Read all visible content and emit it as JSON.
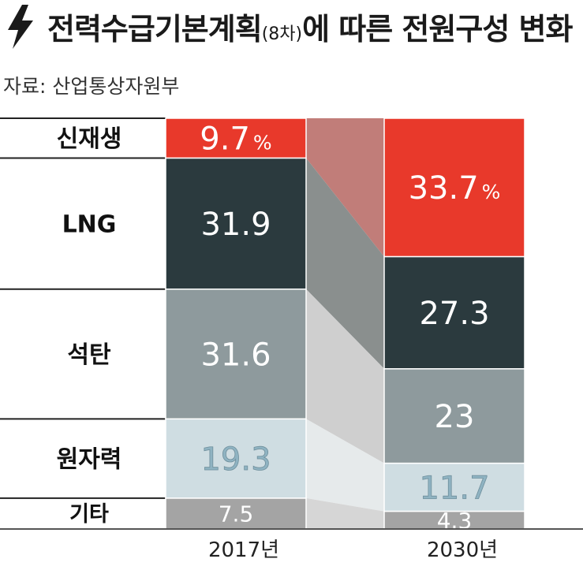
{
  "header": {
    "bolt_icon": "lightning-bolt-icon",
    "title_main": "전력수급기본계획",
    "title_paren": "(8차)",
    "title_rest": "에 따른 전원구성 변화",
    "source": "자료: 산업통상자원부"
  },
  "chart_data": {
    "type": "bar",
    "stacked": true,
    "categories": [
      "2017년",
      "2030년"
    ],
    "series": [
      {
        "name": "신재생",
        "values": [
          9.7,
          33.7
        ],
        "labels": [
          "9.7%",
          "33.7%"
        ],
        "color": "#e8392b"
      },
      {
        "name": "LNG",
        "values": [
          31.9,
          27.3
        ],
        "labels": [
          "31.9",
          "27.3"
        ],
        "color": "#2b3a3e"
      },
      {
        "name": "석탄",
        "values": [
          31.6,
          23
        ],
        "labels": [
          "31.6",
          "23"
        ],
        "color": "#8e9a9d"
      },
      {
        "name": "원자력",
        "values": [
          19.3,
          11.7
        ],
        "labels": [
          "19.3",
          "11.7"
        ],
        "color": "#cfdde2"
      },
      {
        "name": "기타",
        "values": [
          7.5,
          4.3
        ],
        "labels": [
          "7.5",
          "4.3"
        ],
        "color": "#a4a4a4"
      }
    ],
    "connector_colors": [
      "#c17d79",
      "#8a8f8e",
      "#cfcfcf",
      "#e6eaeb",
      "#d6d6d6"
    ],
    "value_label_colors": [
      "#ffffff",
      "#ffffff",
      "#ffffff",
      "#8fb3c2",
      "#ffffff"
    ],
    "ylim": [
      0,
      100
    ]
  }
}
